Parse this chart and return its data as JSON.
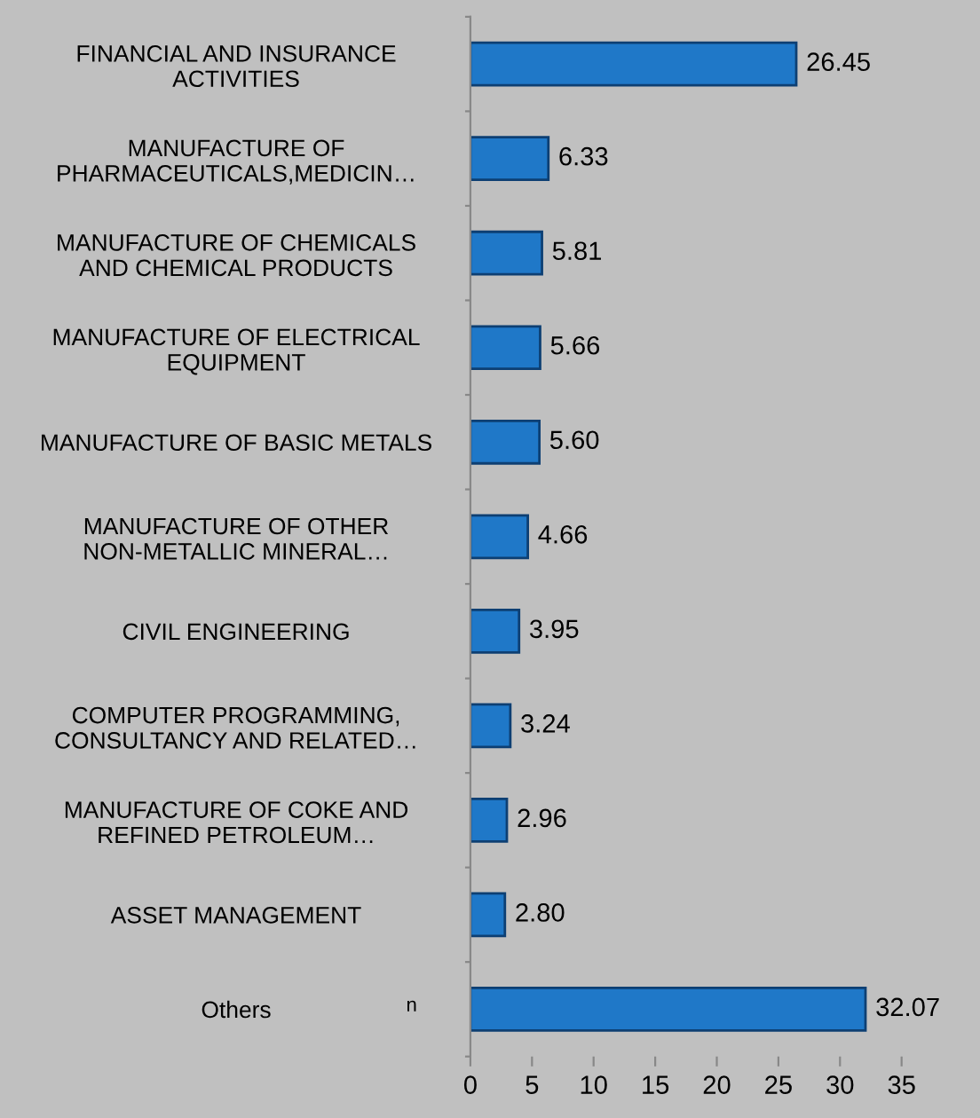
{
  "chart_data": {
    "type": "bar",
    "orientation": "horizontal",
    "categories": [
      "FINANCIAL AND INSURANCE ACTIVITIES",
      "MANUFACTURE OF PHARMACEUTICALS,MEDICIN…",
      "MANUFACTURE OF CHEMICALS AND CHEMICAL PRODUCTS",
      "MANUFACTURE OF ELECTRICAL EQUIPMENT",
      "MANUFACTURE OF BASIC METALS",
      "MANUFACTURE OF OTHER NON-METALLIC MINERAL…",
      "CIVIL ENGINEERING",
      "COMPUTER PROGRAMMING, CONSULTANCY AND RELATED…",
      "MANUFACTURE OF COKE AND REFINED PETROLEUM…",
      "ASSET MANAGEMENT",
      "Others"
    ],
    "values": [
      26.45,
      6.33,
      5.81,
      5.66,
      5.6,
      4.66,
      3.95,
      3.24,
      2.96,
      2.8,
      32.07
    ],
    "value_labels": [
      "26.45",
      "6.33",
      "5.81",
      "5.66",
      "5.60",
      "4.66",
      "3.95",
      "3.24",
      "2.96",
      "2.80",
      "32.07"
    ],
    "color": "#1f78c8",
    "xlim": [
      0,
      35
    ],
    "xticks": [
      0,
      5,
      10,
      15,
      20,
      25,
      30,
      35
    ],
    "grid": false,
    "annotations": [
      "n"
    ]
  }
}
